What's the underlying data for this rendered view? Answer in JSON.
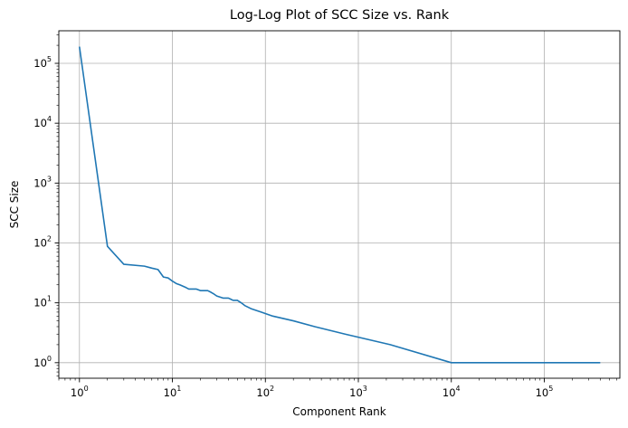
{
  "chart_data": {
    "type": "line",
    "title": "Log-Log Plot of SCC Size vs. Rank",
    "xlabel": "Component Rank",
    "ylabel": "SCC Size",
    "xscale": "log",
    "yscale": "log",
    "xlim": [
      0.6,
      650000
    ],
    "ylim": [
      0.55,
      350000
    ],
    "grid": true,
    "x_ticks": [
      {
        "value": 1,
        "base": "10",
        "exp": "0"
      },
      {
        "value": 10,
        "base": "10",
        "exp": "1"
      },
      {
        "value": 100,
        "base": "10",
        "exp": "2"
      },
      {
        "value": 1000,
        "base": "10",
        "exp": "3"
      },
      {
        "value": 10000,
        "base": "10",
        "exp": "4"
      },
      {
        "value": 100000,
        "base": "10",
        "exp": "5"
      }
    ],
    "y_ticks": [
      {
        "value": 1,
        "base": "10",
        "exp": "0"
      },
      {
        "value": 10,
        "base": "10",
        "exp": "1"
      },
      {
        "value": 100,
        "base": "10",
        "exp": "2"
      },
      {
        "value": 1000,
        "base": "10",
        "exp": "3"
      },
      {
        "value": 10000,
        "base": "10",
        "exp": "4"
      },
      {
        "value": 100000,
        "base": "10",
        "exp": "5"
      }
    ],
    "series": [
      {
        "color": "#1f77b4",
        "x": [
          1,
          2,
          3,
          5,
          6,
          7,
          8,
          9,
          10,
          11,
          12,
          14,
          15,
          18,
          20,
          24,
          26,
          28,
          30,
          35,
          40,
          45,
          50,
          55,
          60,
          70,
          90,
          120,
          200,
          340,
          720,
          2200,
          10000,
          400000
        ],
        "y": [
          190000,
          88,
          44,
          41,
          38,
          36,
          27,
          26,
          23,
          21,
          20,
          18,
          17,
          17,
          16,
          16,
          15,
          14,
          13,
          12,
          12,
          11,
          11,
          10,
          9,
          8,
          7,
          6,
          5,
          4,
          3,
          2,
          1,
          1
        ]
      }
    ]
  }
}
